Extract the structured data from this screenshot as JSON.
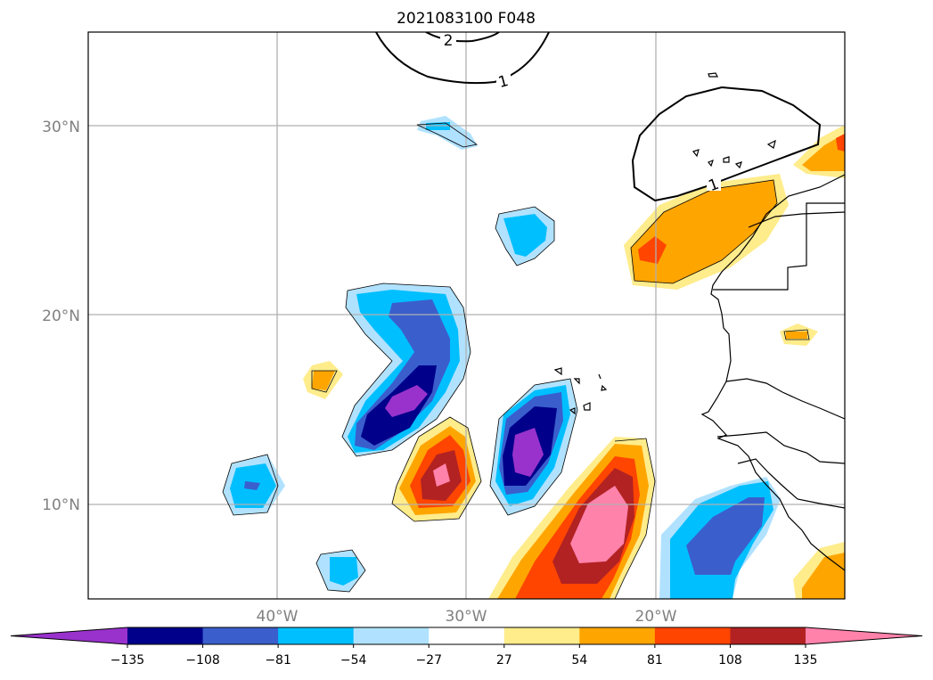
{
  "title": "2021083100 F048",
  "map": {
    "lat_labels": [
      "30°N",
      "20°N",
      "10°N"
    ],
    "lon_labels": [
      "40°W",
      "30°W",
      "20°W"
    ],
    "gridlines": true
  },
  "contours": {
    "labels": [
      "2",
      "1",
      "1"
    ]
  },
  "colorbar": {
    "orientation": "horizontal",
    "extend": "both",
    "levels": [
      -135,
      -108,
      -81,
      -54,
      -27,
      27,
      54,
      81,
      108,
      135
    ],
    "tick_labels": [
      "−135",
      "−108",
      "−81",
      "−54",
      "−27",
      "27",
      "54",
      "81",
      "108",
      "135"
    ],
    "colors": [
      "#9932cc",
      "#00008b",
      "#3a5fcd",
      "#00bfff",
      "#b0e2ff",
      "#ffffff",
      "#ffec8b",
      "#ffa500",
      "#ff4500",
      "#b22222",
      "#ff82ab"
    ]
  }
}
